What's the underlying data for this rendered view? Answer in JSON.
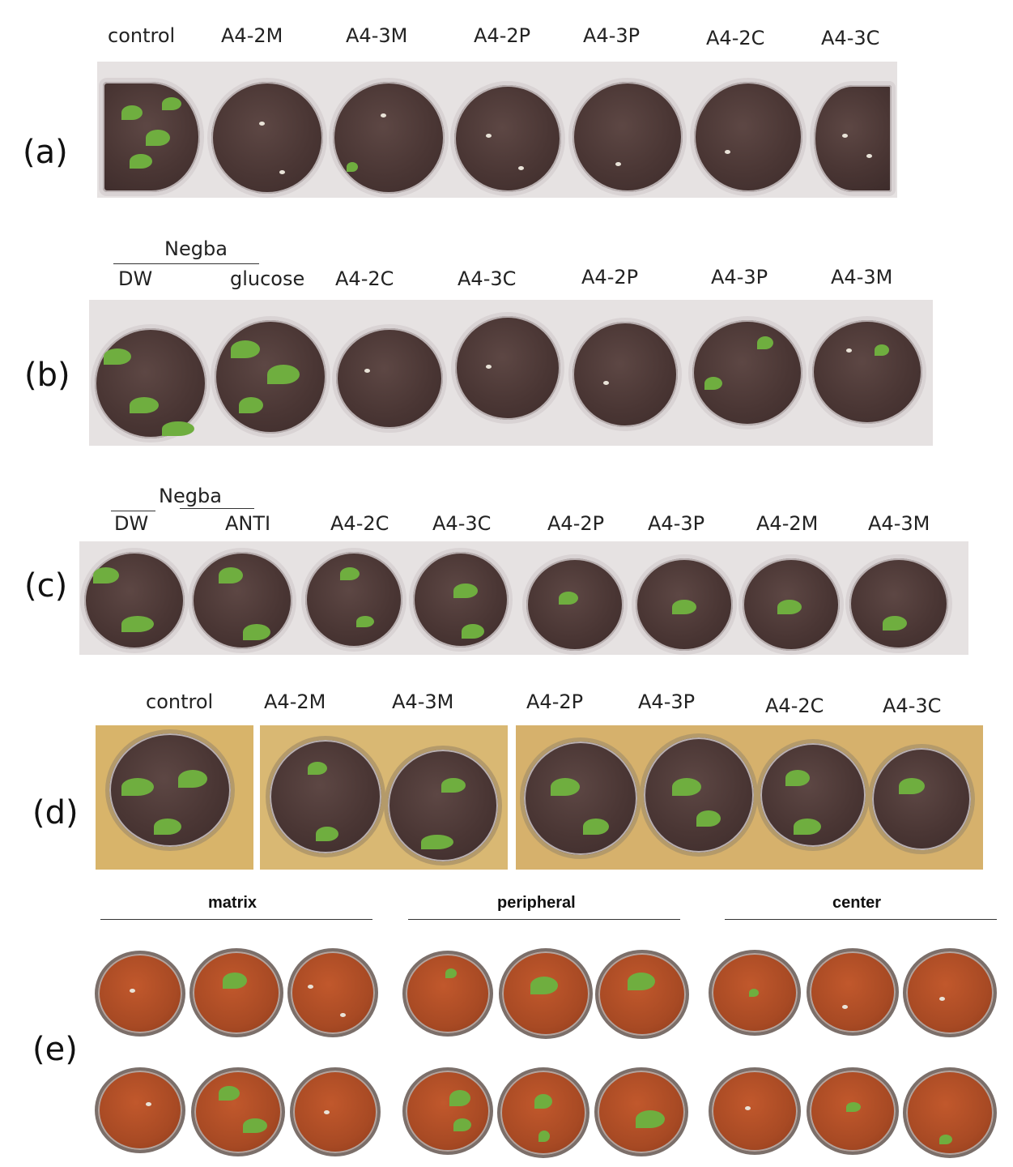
{
  "panels": {
    "a": {
      "letter": "(a)",
      "labels": [
        "control",
        "A4-2M",
        "A4-3M",
        "A4-2P",
        "A4-3P",
        "A4-2C",
        "A4-3C"
      ]
    },
    "b": {
      "letter": "(b)",
      "group": "Negba",
      "labels": [
        "DW",
        "glucose",
        "A4-2C",
        "A4-3C",
        "A4-2P",
        "A4-3P",
        "A4-3M"
      ]
    },
    "c": {
      "letter": "(c)",
      "group": "Negba",
      "labels": [
        "DW",
        "ANTI",
        "A4-2C",
        "A4-3C",
        "A4-2P",
        "A4-3P",
        "A4-2M",
        "A4-3M"
      ]
    },
    "d": {
      "letter": "(d)",
      "labels": [
        "control",
        "A4-2M",
        "A4-3M",
        "A4-2P",
        "A4-3P",
        "A4-2C",
        "A4-3C"
      ]
    },
    "e": {
      "letter": "(e)",
      "groups": [
        "matrix",
        "peripheral",
        "center"
      ]
    }
  },
  "colors": {
    "soil_dark": "#4a3634",
    "soil_red": "#a84a24",
    "seedling_green": "#6fae3f",
    "tray_grey": "#e6e2e2",
    "tray_yellow": "#d8b46a"
  }
}
